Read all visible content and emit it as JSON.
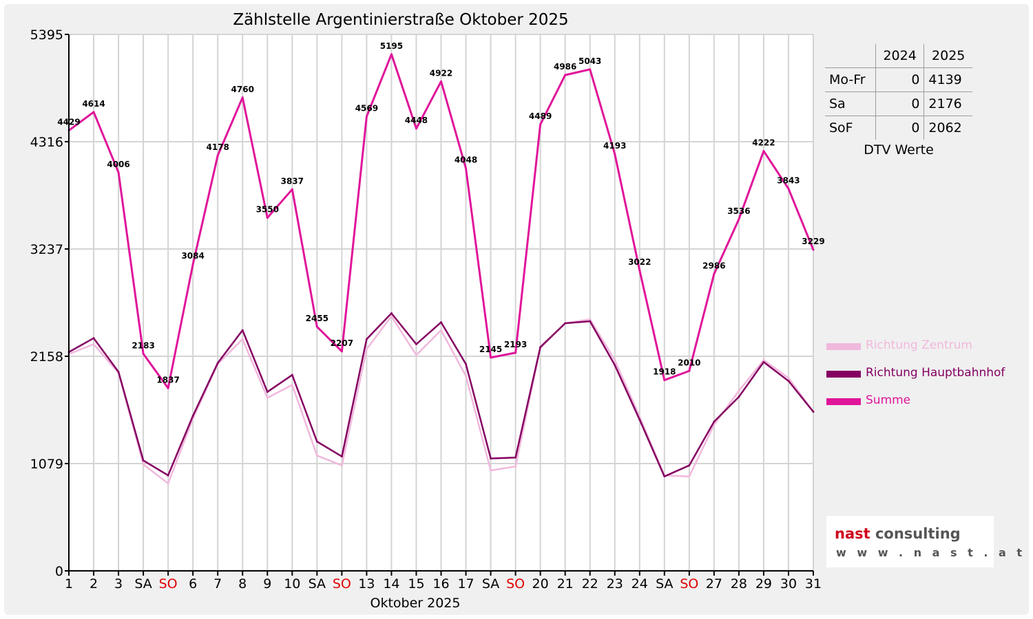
{
  "colors": {
    "zentrum": "#f0b8dc",
    "hauptbahnhof": "#850061",
    "summe": "#e0159a",
    "weekend": "#e00000",
    "grid": "#d4d4d4"
  },
  "dtv_table": {
    "headers": [
      "",
      "2024",
      "2025"
    ],
    "rows": [
      {
        "label": "Mo-Fr",
        "v2024": "0",
        "v2025": "4139"
      },
      {
        "label": "Sa",
        "v2024": "0",
        "v2025": "2176"
      },
      {
        "label": "SoF",
        "v2024": "0",
        "v2025": "2062"
      }
    ],
    "caption": "DTV Werte"
  },
  "logo": {
    "brand": "nast",
    "brand_suffix": "consulting",
    "url": "w w w . n a s t . a t"
  },
  "chart_data": {
    "type": "line",
    "title": "Zählstelle Argentinierstraße Oktober 2025",
    "xlabel": "Oktober 2025",
    "ylabel": "",
    "ylim": [
      0,
      5395
    ],
    "yticks": [
      0,
      1079,
      2158,
      3237,
      4316,
      5395
    ],
    "grid": true,
    "legend_position": "right",
    "categories": [
      "1",
      "2",
      "3",
      "SA",
      "SO",
      "6",
      "7",
      "8",
      "9",
      "10",
      "SA",
      "SO",
      "13",
      "14",
      "15",
      "16",
      "17",
      "SA",
      "SO",
      "20",
      "21",
      "22",
      "23",
      "24",
      "SA",
      "SO",
      "27",
      "28",
      "29",
      "30",
      "31"
    ],
    "weekend_categories": [
      "SO"
    ],
    "series": [
      {
        "name": "Richtung Zentrum",
        "color_key": "zentrum",
        "values": [
          2180,
          2280,
          1990,
          1070,
          880,
          1530,
          2080,
          2330,
          1740,
          1870,
          1160,
          1060,
          2230,
          2560,
          2170,
          2420,
          1960,
          1010,
          1050,
          2240,
          2490,
          2530,
          2120,
          1550,
          960,
          950,
          1470,
          1810,
          2120,
          1940,
          1600
        ]
      },
      {
        "name": "Richtung Hauptbahnhof",
        "color_key": "hauptbahnhof",
        "values": [
          2200,
          2340,
          2000,
          1110,
          960,
          1560,
          2090,
          2420,
          1800,
          1970,
          1300,
          1150,
          2330,
          2590,
          2280,
          2500,
          2080,
          1130,
          1140,
          2250,
          2490,
          2510,
          2070,
          1520,
          950,
          1060,
          1500,
          1750,
          2100,
          1910,
          1600
        ]
      },
      {
        "name": "Summe",
        "color_key": "summe",
        "values": [
          4429,
          4614,
          4006,
          2183,
          1837,
          3084,
          4178,
          4760,
          3550,
          3837,
          2455,
          2207,
          4569,
          5195,
          4448,
          4922,
          4048,
          2145,
          2193,
          4489,
          4986,
          5043,
          4193,
          3022,
          1918,
          2010,
          2986,
          3536,
          4222,
          3843,
          3229
        ],
        "labels": [
          "4429",
          "4614",
          "4006",
          "2183",
          "1837",
          "3084",
          "4178",
          "4760",
          "3550",
          "3837",
          "2455",
          "2207",
          "4569",
          "5195",
          "4448",
          "4922",
          "4048",
          "2145",
          "2193",
          "4489",
          "4986",
          "5043",
          "4193",
          "3022",
          "1918",
          "2010",
          "2986",
          "3536",
          "4222",
          "3843",
          "3229"
        ]
      }
    ]
  }
}
